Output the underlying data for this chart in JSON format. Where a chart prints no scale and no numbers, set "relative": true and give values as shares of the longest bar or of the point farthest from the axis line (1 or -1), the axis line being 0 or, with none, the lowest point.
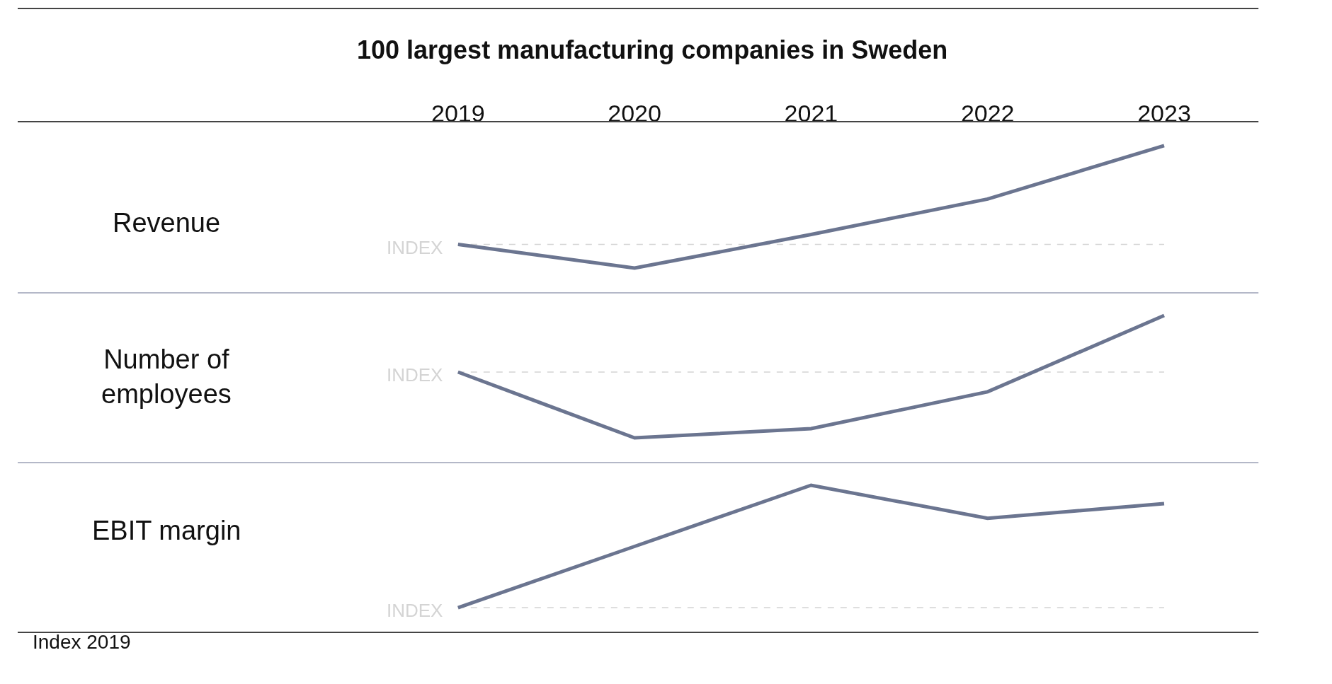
{
  "chart_data": [
    {
      "type": "line",
      "title": "100 largest manufacturing companies in Sweden",
      "ylabel": "Revenue",
      "categories": [
        "2019",
        "2020",
        "2021",
        "2022",
        "2023"
      ],
      "relative": true,
      "tick_labels": "x",
      "grid": false,
      "series": [
        {
          "color": "#6b7590",
          "values": [
            0,
            -0.24,
            0.1,
            0.46,
            1
          ]
        }
      ],
      "ref_lines": [
        {
          "axis": "y",
          "value": 0,
          "label": "INDEX",
          "color": "#d4d4d4",
          "line_style": "dashed"
        }
      ]
    },
    {
      "type": "line",
      "ylabel": "Number of\nemployees",
      "categories": [
        "2019",
        "2020",
        "2021",
        "2022",
        "2023"
      ],
      "relative": true,
      "tick_labels": false,
      "grid": false,
      "series": [
        {
          "color": "#6b7590",
          "values": [
            0,
            -1,
            -0.86,
            -0.3,
            0.86
          ]
        }
      ],
      "ref_lines": [
        {
          "axis": "y",
          "value": 0,
          "label": "INDEX",
          "color": "#d4d4d4",
          "line_style": "dashed"
        }
      ]
    },
    {
      "type": "line",
      "ylabel": "EBIT margin",
      "categories": [
        "2019",
        "2020",
        "2021",
        "2022",
        "2023"
      ],
      "relative": true,
      "tick_labels": false,
      "grid": false,
      "series": [
        {
          "color": "#6b7590",
          "values": [
            0,
            0.5,
            1,
            0.73,
            0.85
          ]
        }
      ],
      "ref_lines": [
        {
          "axis": "y",
          "value": 0,
          "label": "INDEX",
          "color": "#d4d4d4",
          "line_style": "dashed"
        }
      ],
      "annotations": [
        "Index 2019"
      ]
    }
  ]
}
